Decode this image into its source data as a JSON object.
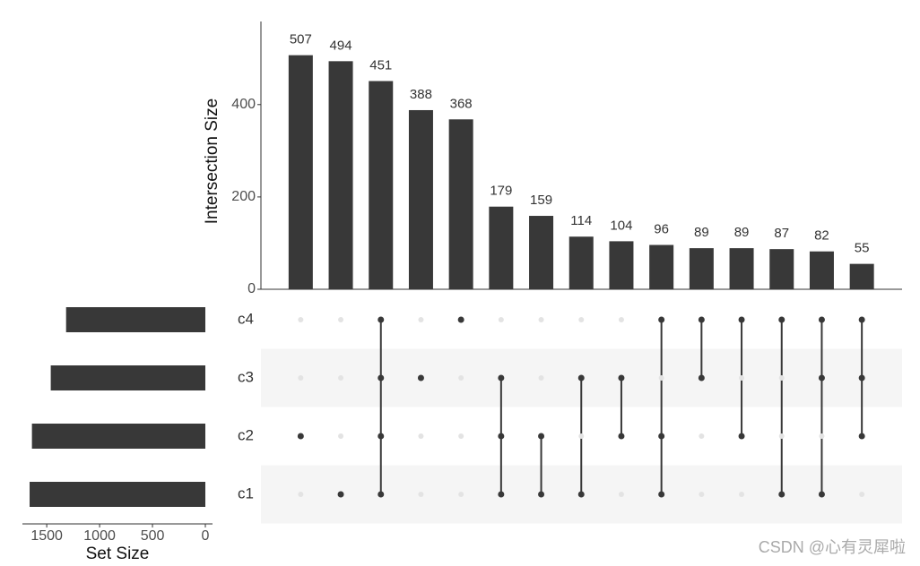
{
  "chart_data": {
    "type": "upset",
    "y_label": "Intersection Size",
    "x_label": "Set Size",
    "values": [
      507,
      494,
      451,
      388,
      368,
      179,
      159,
      114,
      104,
      96,
      89,
      89,
      87,
      82,
      55
    ],
    "combinations": [
      [
        "c2"
      ],
      [
        "c1"
      ],
      [
        "c4",
        "c3",
        "c2",
        "c1"
      ],
      [
        "c3"
      ],
      [
        "c4"
      ],
      [
        "c3",
        "c2",
        "c1"
      ],
      [
        "c2",
        "c1"
      ],
      [
        "c3",
        "c1"
      ],
      [
        "c3",
        "c2"
      ],
      [
        "c4",
        "c2",
        "c1"
      ],
      [
        "c4",
        "c3"
      ],
      [
        "c4",
        "c2"
      ],
      [
        "c4",
        "c1"
      ],
      [
        "c4",
        "c3",
        "c1"
      ],
      [
        "c4",
        "c3",
        "c2"
      ]
    ],
    "sets": [
      "c4",
      "c3",
      "c2",
      "c1"
    ],
    "set_sizes": [
      1317,
      1462,
      1640,
      1662
    ],
    "color": "#383838",
    "ylim": [
      0,
      580
    ],
    "yticks": [
      0,
      200,
      400
    ],
    "set_xlim": [
      1730,
      0
    ],
    "set_xticks": [
      1500,
      1000,
      500,
      0
    ],
    "watermark": "CSDN @心有灵犀啦"
  }
}
